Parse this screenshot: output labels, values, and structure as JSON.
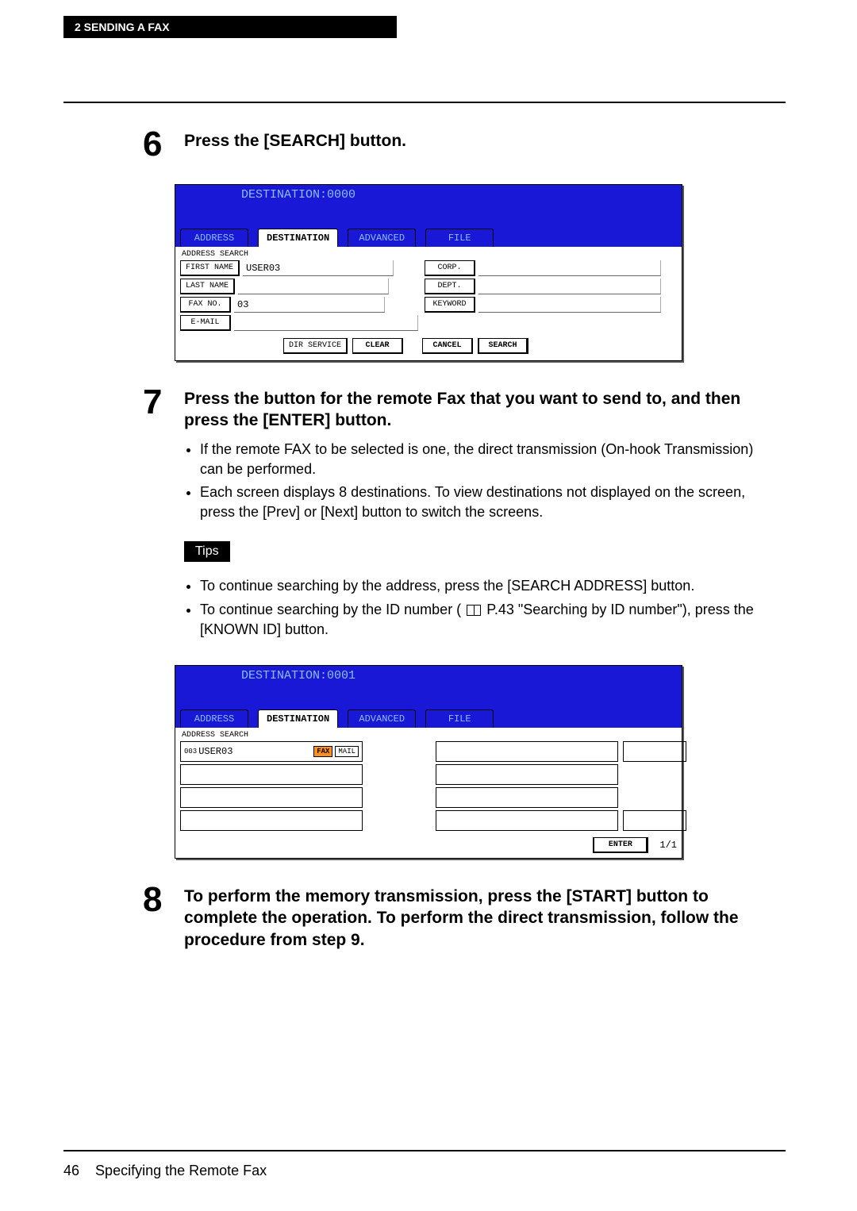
{
  "header": {
    "section_label": "2  SENDING A FAX"
  },
  "steps": {
    "s6": {
      "num": "6",
      "title": "Press the [SEARCH] button."
    },
    "s7": {
      "num": "7",
      "title": "Press the button for the remote Fax that you want to send to, and then press the [ENTER] button.",
      "bullets": [
        "If the remote FAX to be selected is one, the direct transmission (On-hook Transmission) can be performed.",
        "Each screen displays 8 destinations. To view destinations not displayed on the screen, press the [Prev] or [Next] button to switch the screens."
      ],
      "tips_label": "Tips",
      "tips": [
        "To continue searching by the address, press the [SEARCH ADDRESS] button.",
        "To continue searching by the ID number ( __ICON__ P.43 \"Searching by ID number\"), press the [KNOWN ID] button."
      ]
    },
    "s8": {
      "num": "8",
      "title": "To perform the memory transmission, press the [START] button to complete the operation. To perform the direct transmission, follow the procedure from step 9."
    }
  },
  "screenshot1": {
    "dest_title": "DESTINATION:0000",
    "tabs": [
      "ADDRESS",
      "DESTINATION",
      "ADVANCED",
      "FILE"
    ],
    "active_tab": 1,
    "subtitle": "ADDRESS SEARCH",
    "fields": {
      "first_name": {
        "label": "FIRST NAME",
        "value": "USER03"
      },
      "last_name": {
        "label": "LAST NAME",
        "value": ""
      },
      "fax_no": {
        "label": "FAX NO.",
        "value": "03"
      },
      "email": {
        "label": "E-MAIL",
        "value": ""
      },
      "corp": {
        "label": "CORP.",
        "value": ""
      },
      "dept": {
        "label": "DEPT.",
        "value": ""
      },
      "keyword": {
        "label": "KEYWORD",
        "value": ""
      }
    },
    "actions": {
      "dir": "DIR SERVICE",
      "clear": "CLEAR",
      "cancel": "CANCEL",
      "search": "SEARCH"
    }
  },
  "screenshot2": {
    "dest_title": "DESTINATION:0001",
    "tabs": [
      "ADDRESS",
      "DESTINATION",
      "ADVANCED",
      "FILE"
    ],
    "active_tab": 1,
    "subtitle": "ADDRESS SEARCH",
    "result": {
      "idx": "003",
      "name": "USER03",
      "tag_fax": "FAX",
      "tag_mail": "MAIL"
    },
    "enter": "ENTER",
    "page": "1/1"
  },
  "footer": {
    "page_num": "46",
    "title": "Specifying the Remote Fax"
  }
}
